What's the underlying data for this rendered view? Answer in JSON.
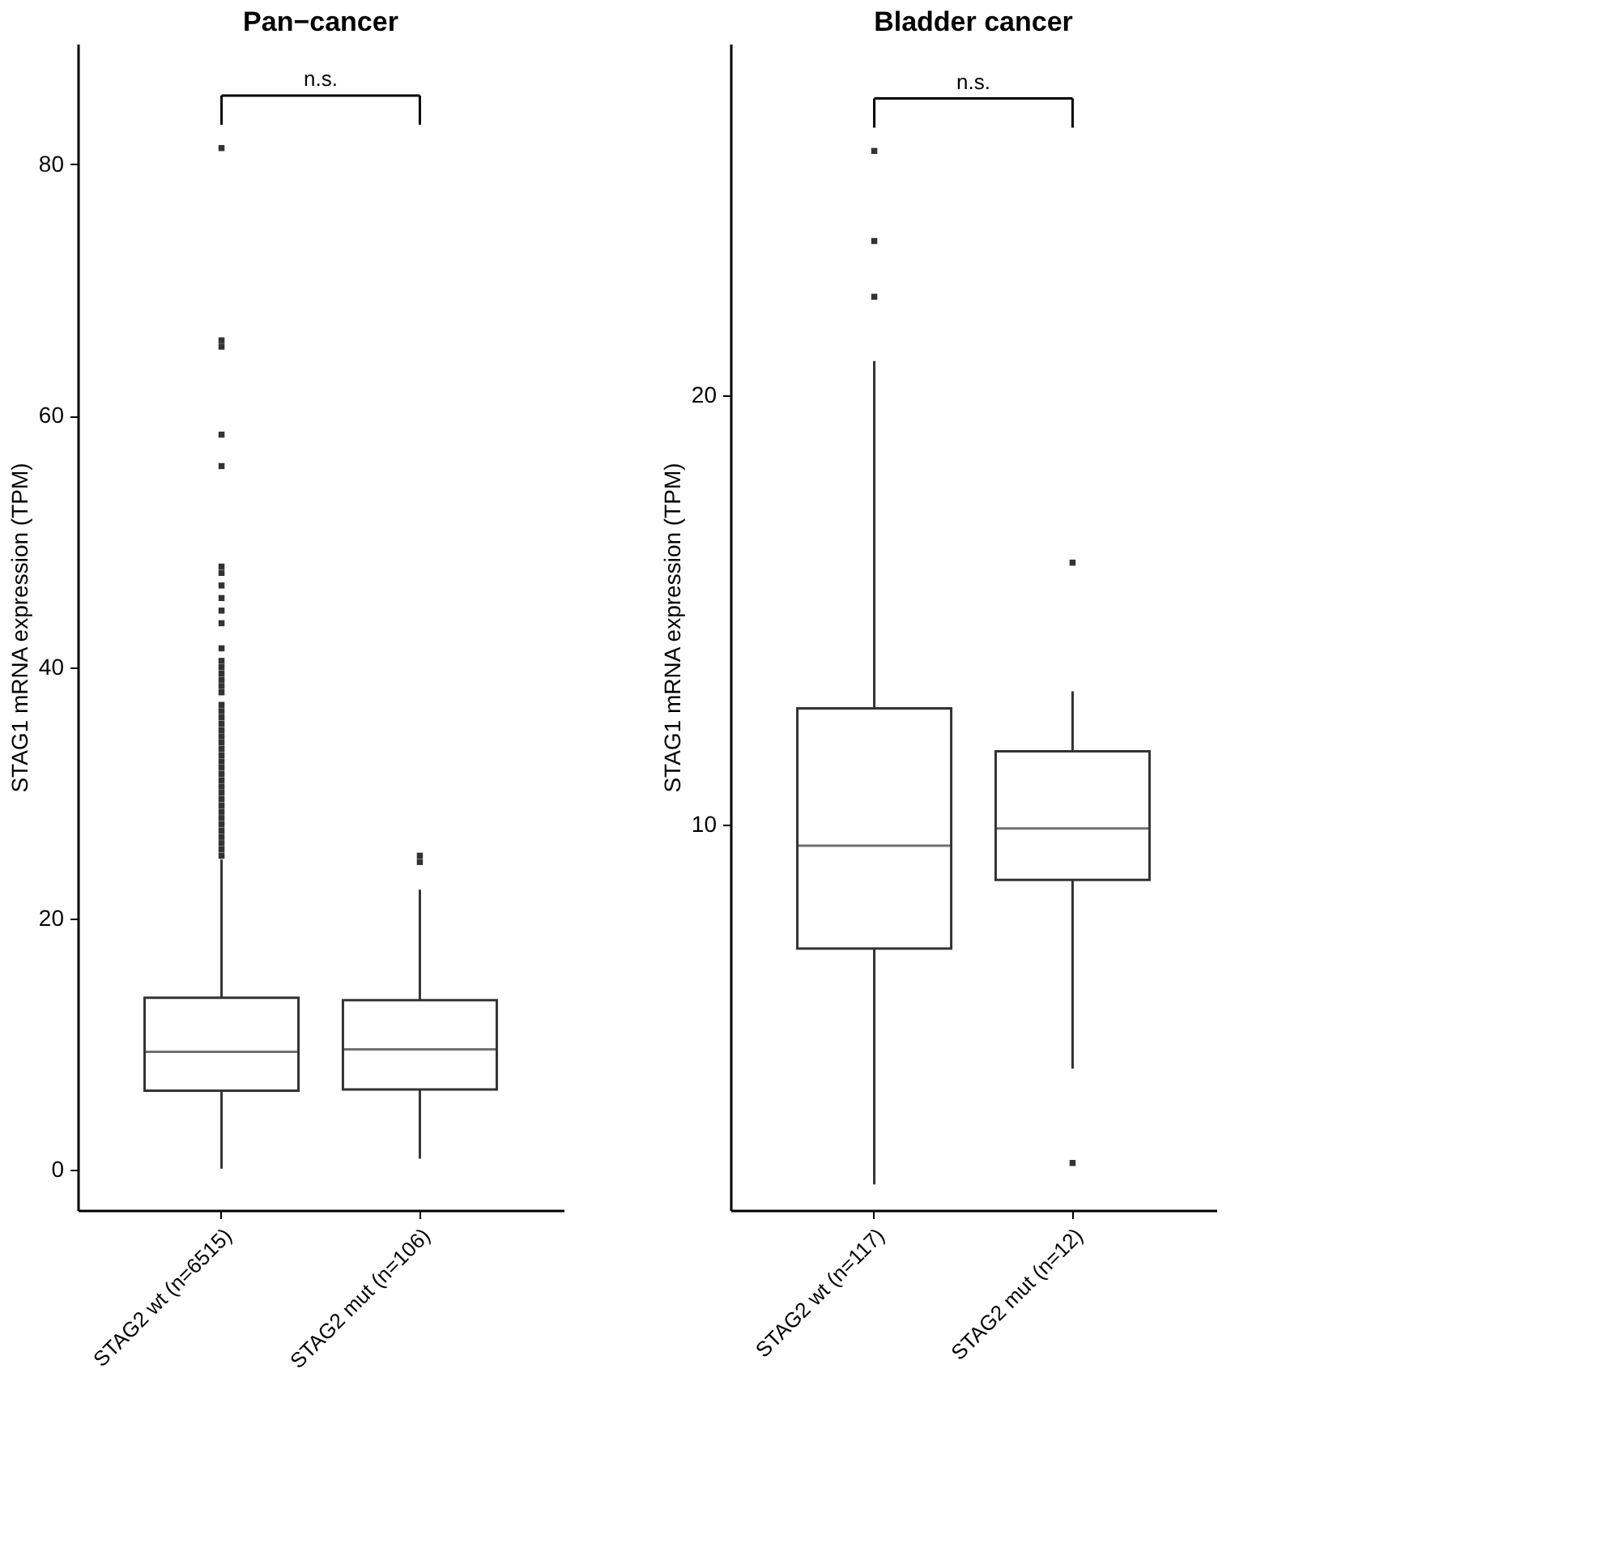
{
  "chart_data": [
    {
      "type": "box",
      "title": "Pan−cancer",
      "ylabel": "STAG1 mRNA expression (TPM)",
      "categories": [
        "STAG2 wt (n=6515)",
        "STAG2 mut (n=106)"
      ],
      "color": "#333333",
      "ylim": [
        -3.2,
        89.6
      ],
      "yticks": [
        0,
        20,
        40,
        60,
        80
      ],
      "annotations": [
        "n.s."
      ],
      "boxes": [
        {
          "low": 0.1,
          "q1": 6.3,
          "median": 9.4,
          "q3": 13.7,
          "high": 24.7,
          "outliers": [
            25,
            25.5,
            26,
            26.5,
            27,
            27.5,
            28,
            28.5,
            29,
            29.5,
            30,
            30.5,
            31,
            31.5,
            32,
            32.5,
            33,
            33.5,
            34,
            34.5,
            35,
            35.5,
            36,
            36.5,
            37,
            38,
            38.5,
            39,
            39.5,
            40,
            40.5,
            41.5,
            43.5,
            44.5,
            45.5,
            46.5,
            47.5,
            48,
            56,
            58.5,
            65.5,
            66,
            81.3
          ]
        },
        {
          "low": 0.9,
          "q1": 6.4,
          "median": 9.6,
          "q3": 13.5,
          "high": 22.3,
          "outliers": [
            24.5,
            25
          ]
        }
      ]
    },
    {
      "type": "box",
      "title": "Bladder cancer",
      "ylabel": "STAG1 mRNA expression (TPM)",
      "categories": [
        "STAG2 wt (n=117)",
        "STAG2 mut (n=12)"
      ],
      "color": "#333333",
      "ylim": [
        1.0,
        28.2
      ],
      "yticks": [
        10,
        20
      ],
      "annotations": [
        "n.s."
      ],
      "boxes": [
        {
          "low": 1.6,
          "q1": 7.1,
          "median": 9.5,
          "q3": 12.7,
          "high": 20.8,
          "outliers": [
            22.3,
            23.6,
            25.7
          ]
        },
        {
          "low": 4.3,
          "q1": 8.7,
          "median": 9.9,
          "q3": 11.7,
          "high": 13.1,
          "outliers": [
            2.1,
            16.1
          ]
        }
      ]
    }
  ]
}
